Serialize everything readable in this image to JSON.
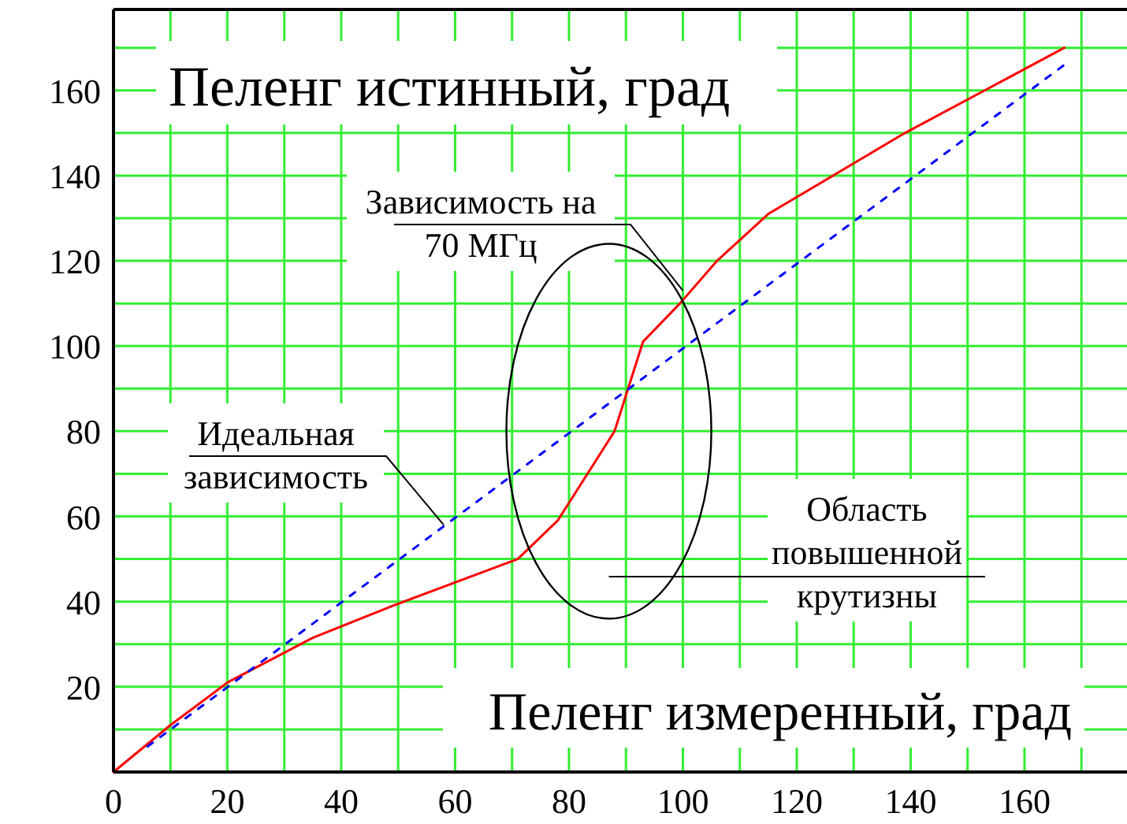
{
  "chart_data": {
    "type": "line",
    "xlabel": "Пеленг измеренный, град",
    "ylabel": "Пеленг истинный, град",
    "series": [
      {
        "color": "#ff0000",
        "line_style": "solid",
        "x": [
          0,
          10,
          20,
          35,
          49,
          71,
          78,
          88,
          93,
          99.5,
          106,
          115,
          139,
          167
        ],
        "values": [
          0,
          11,
          21,
          31.5,
          39,
          50,
          59,
          80,
          101,
          110,
          120,
          131,
          150,
          170
        ]
      },
      {
        "color": "#0000ff",
        "line_style": "dotted",
        "x": [
          6,
          167
        ],
        "values": [
          6,
          166
        ]
      }
    ],
    "xlim": [
      0,
      178
    ],
    "ylim": [
      0,
      179
    ],
    "xticks": [
      0,
      {
        "value": 10,
        "label": null
      },
      20,
      {
        "value": 30,
        "label": null
      },
      40,
      {
        "value": 50,
        "label": null
      },
      60,
      {
        "value": 70,
        "label": null
      },
      80,
      {
        "value": 90,
        "label": null
      },
      100,
      {
        "value": 110,
        "label": null
      },
      120,
      {
        "value": 130,
        "label": null
      },
      140,
      {
        "value": 150,
        "label": null
      },
      160,
      {
        "value": 170,
        "label": null
      }
    ],
    "yticks": [
      {
        "value": 0,
        "label": null
      },
      {
        "value": 10,
        "label": null
      },
      20,
      {
        "value": 30,
        "label": null
      },
      40,
      {
        "value": 50,
        "label": null
      },
      60,
      {
        "value": 70,
        "label": null
      },
      80,
      {
        "value": 90,
        "label": null
      },
      100,
      {
        "value": 110,
        "label": null
      },
      120,
      {
        "value": 130,
        "label": null
      },
      140,
      {
        "value": 150,
        "label": null
      },
      160,
      {
        "value": 170,
        "label": null
      }
    ],
    "grid": true,
    "marker": "none",
    "annotations": [
      {
        "text": "Зависимость на\n70 МГц",
        "x": 100,
        "y": 113
      },
      {
        "text": "Идеальная\nзависимость",
        "x": 58,
        "y": 58
      },
      "Область\nповышенной\nкрутизны"
    ]
  }
}
